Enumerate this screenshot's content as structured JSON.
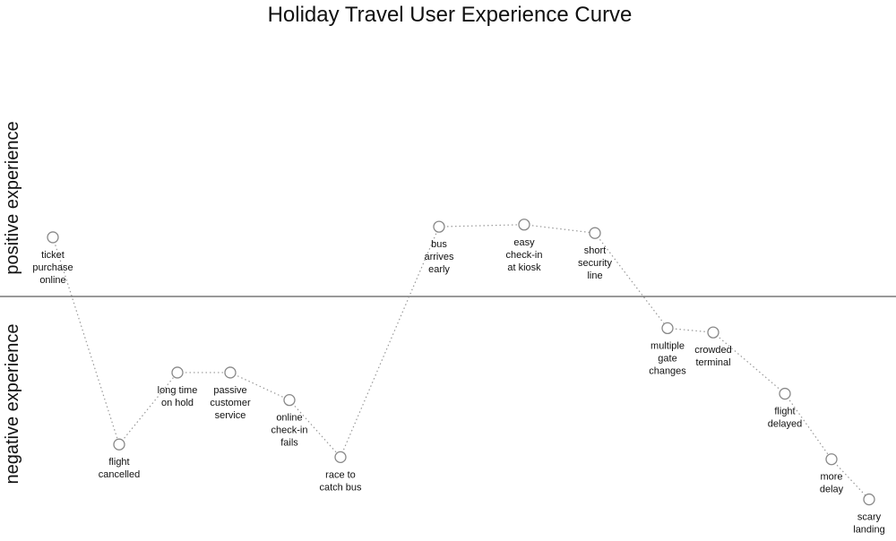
{
  "chart_data": {
    "type": "line",
    "title": "Holiday Travel User Experience Curve",
    "positive_label": "positive experience",
    "negative_label": "negative experience",
    "ylim": [
      -100,
      100
    ],
    "points": [
      {
        "label": [
          "ticket",
          "purchase",
          "online"
        ],
        "value": 28
      },
      {
        "label": [
          "flight",
          "cancelled"
        ],
        "value": -70
      },
      {
        "label": [
          "long time",
          "on hold"
        ],
        "value": -36
      },
      {
        "label": [
          "passive",
          "customer",
          "service"
        ],
        "value": -36
      },
      {
        "label": [
          "online",
          "check-in",
          "fails"
        ],
        "value": -49
      },
      {
        "label": [
          "race to",
          "catch bus"
        ],
        "value": -76
      },
      {
        "label": [
          "bus",
          "arrives",
          "early"
        ],
        "value": 33
      },
      {
        "label": [
          "easy",
          "check-in",
          "at kiosk"
        ],
        "value": 34
      },
      {
        "label": [
          "short",
          "security",
          "line"
        ],
        "value": 30
      },
      {
        "label": [
          "multiple",
          "gate",
          "changes"
        ],
        "value": -15
      },
      {
        "label": [
          "crowded",
          "terminal"
        ],
        "value": -17
      },
      {
        "label": [
          "flight",
          "delayed"
        ],
        "value": -46
      },
      {
        "label": [
          "more",
          "delay"
        ],
        "value": -77
      },
      {
        "label": [
          "scary",
          "landing"
        ],
        "value": -96
      }
    ]
  }
}
